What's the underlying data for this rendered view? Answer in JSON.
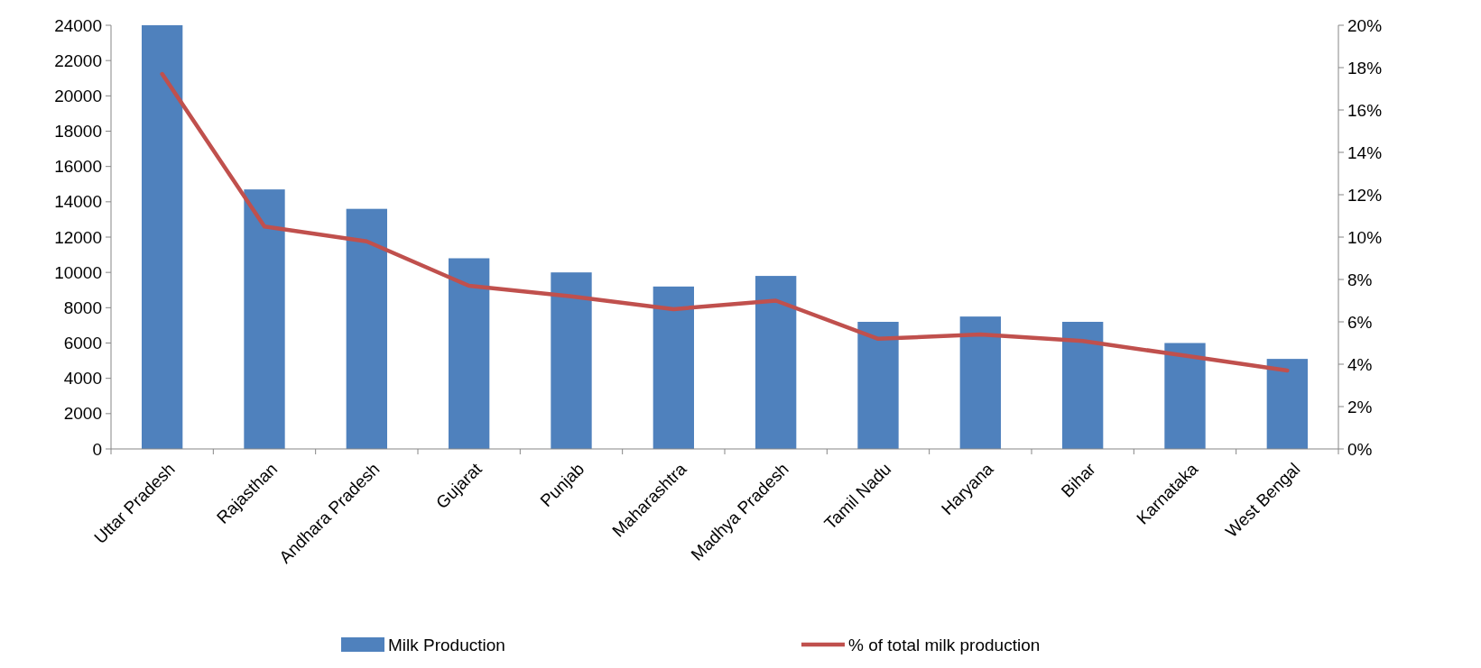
{
  "chart_data": {
    "type": "bar",
    "categories": [
      "Uttar Pradesh",
      "Rajasthan",
      "Andhara Pradesh",
      "Gujarat",
      "Punjab",
      "Maharashtra",
      "Madhya Pradesh",
      "Tamil Nadu",
      "Haryana",
      "Bihar",
      "Karnataka",
      "West Bengal"
    ],
    "series": [
      {
        "name": "Milk Production",
        "color": "#4f81bd",
        "values": [
          24000,
          14700,
          13600,
          10800,
          10000,
          9200,
          9800,
          7200,
          7500,
          7200,
          6000,
          5100
        ]
      },
      {
        "name": "% of total milk production",
        "type": "line",
        "axis": "y2",
        "color": "#c0504d",
        "values": [
          17.7,
          10.5,
          9.8,
          7.7,
          7.2,
          6.6,
          7.0,
          5.2,
          5.4,
          5.1,
          4.4,
          3.7
        ]
      }
    ],
    "ylim": [
      0,
      24000
    ],
    "yticks": [
      0,
      2000,
      4000,
      6000,
      8000,
      10000,
      12000,
      14000,
      16000,
      18000,
      20000,
      22000,
      24000
    ],
    "y2lim": [
      0,
      20
    ],
    "y2ticks": [
      {
        "value": 0,
        "label": "0%"
      },
      {
        "value": 2,
        "label": "2%"
      },
      {
        "value": 4,
        "label": "4%"
      },
      {
        "value": 6,
        "label": "6%"
      },
      {
        "value": 8,
        "label": "8%"
      },
      {
        "value": 10,
        "label": "10%"
      },
      {
        "value": 12,
        "label": "12%"
      },
      {
        "value": 14,
        "label": "14%"
      },
      {
        "value": 16,
        "label": "16%"
      },
      {
        "value": 18,
        "label": "18%"
      },
      {
        "value": 20,
        "label": "20%"
      }
    ],
    "grid": false,
    "legend": "bottom",
    "marker": "none",
    "line_style": "solid"
  }
}
